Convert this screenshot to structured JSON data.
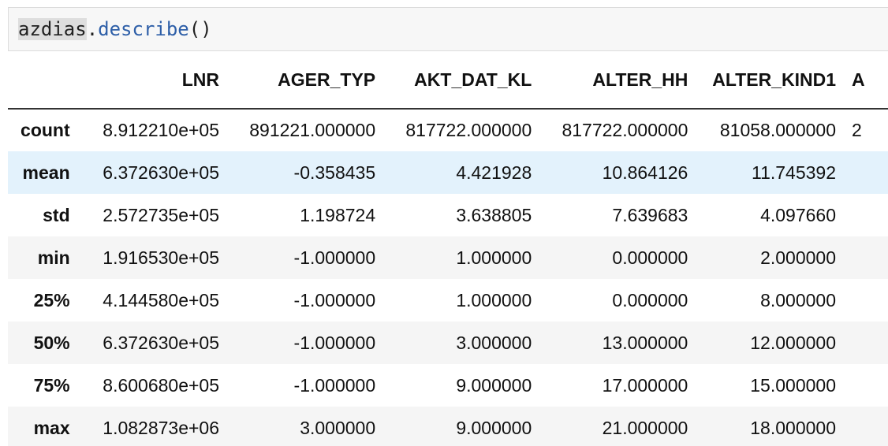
{
  "code_cell": {
    "variable": "azdias",
    "dot": ".",
    "method": "describe",
    "parens": "()"
  },
  "table": {
    "columns": [
      "LNR",
      "AGER_TYP",
      "AKT_DAT_KL",
      "ALTER_HH",
      "ALTER_KIND1",
      "A"
    ],
    "rows": [
      {
        "label": "count",
        "values": [
          "8.912210e+05",
          "891221.000000",
          "817722.000000",
          "817722.000000",
          "81058.000000",
          "2"
        ]
      },
      {
        "label": "mean",
        "values": [
          "6.372630e+05",
          "-0.358435",
          "4.421928",
          "10.864126",
          "11.745392",
          ""
        ]
      },
      {
        "label": "std",
        "values": [
          "2.572735e+05",
          "1.198724",
          "3.638805",
          "7.639683",
          "4.097660",
          ""
        ]
      },
      {
        "label": "min",
        "values": [
          "1.916530e+05",
          "-1.000000",
          "1.000000",
          "0.000000",
          "2.000000",
          ""
        ]
      },
      {
        "label": "25%",
        "values": [
          "4.144580e+05",
          "-1.000000",
          "1.000000",
          "0.000000",
          "8.000000",
          ""
        ]
      },
      {
        "label": "50%",
        "values": [
          "6.372630e+05",
          "-1.000000",
          "3.000000",
          "13.000000",
          "12.000000",
          ""
        ]
      },
      {
        "label": "75%",
        "values": [
          "8.600680e+05",
          "-1.000000",
          "9.000000",
          "17.000000",
          "15.000000",
          ""
        ]
      },
      {
        "label": "max",
        "values": [
          "1.082873e+06",
          "3.000000",
          "9.000000",
          "21.000000",
          "18.000000",
          ""
        ]
      }
    ]
  },
  "colors": {
    "hover_row": "#e3f2fc",
    "alt_row": "#f5f5f5",
    "method": "#2e5fa8"
  }
}
